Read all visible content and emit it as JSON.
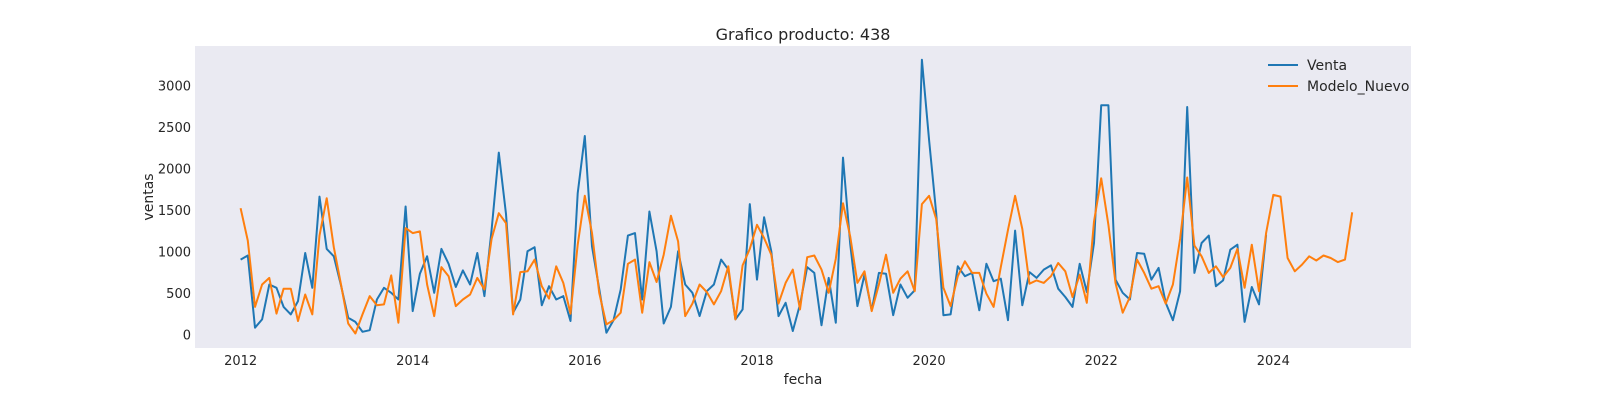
{
  "chart_data": {
    "type": "line",
    "title": "Grafico producto: 438",
    "xlabel": "fecha",
    "ylabel": "ventas",
    "xlim": [
      2011.47,
      2025.6
    ],
    "ylim": [
      -165,
      3475
    ],
    "xticks": [
      2012,
      2014,
      2016,
      2018,
      2020,
      2022,
      2024
    ],
    "yticks": [
      0,
      500,
      1000,
      1500,
      2000,
      2500,
      3000
    ],
    "grid": false,
    "legend_position": "top-right",
    "series": [
      {
        "name": "Venta",
        "color": "#1f77b4",
        "x_start": 2012.0,
        "x_step": 0.0833333,
        "values": [
          900,
          950,
          80,
          180,
          600,
          560,
          330,
          240,
          400,
          980,
          560,
          1660,
          1030,
          940,
          590,
          200,
          150,
          30,
          50,
          420,
          560,
          500,
          420,
          1540,
          280,
          730,
          940,
          500,
          1030,
          850,
          570,
          770,
          600,
          980,
          460,
          1260,
          2190,
          1450,
          260,
          420,
          1000,
          1050,
          350,
          580,
          420,
          460,
          160,
          1700,
          2390,
          1060,
          550,
          20,
          170,
          540,
          1190,
          1220,
          420,
          1480,
          1000,
          130,
          330,
          1000,
          600,
          500,
          220,
          520,
          600,
          900,
          780,
          180,
          300,
          1570,
          660,
          1410,
          1000,
          220,
          380,
          40,
          360,
          810,
          740,
          110,
          680,
          140,
          2130,
          1090,
          340,
          720,
          290,
          740,
          730,
          230,
          600,
          440,
          530,
          3310,
          2340,
          1460,
          230,
          240,
          820,
          700,
          740,
          290,
          850,
          640,
          670,
          170,
          1250,
          350,
          750,
          680,
          780,
          830,
          550,
          450,
          330,
          850,
          510,
          1100,
          2760,
          2760,
          660,
          500,
          420,
          980,
          970,
          660,
          800,
          380,
          170,
          520,
          2740,
          740,
          1100,
          1190,
          580,
          650,
          1020,
          1080,
          150,
          570,
          360,
          1200
        ]
      },
      {
        "name": "Modelo_Nuevo",
        "color": "#ff7f0e",
        "x_start": 2012.0,
        "x_step": 0.0833333,
        "values": [
          1520,
          1130,
          330,
          600,
          680,
          250,
          550,
          550,
          160,
          480,
          240,
          1190,
          1640,
          1050,
          600,
          130,
          10,
          240,
          460,
          350,
          360,
          710,
          140,
          1280,
          1220,
          1240,
          600,
          220,
          810,
          700,
          340,
          420,
          480,
          680,
          540,
          1150,
          1460,
          1340,
          240,
          750,
          760,
          900,
          580,
          430,
          820,
          620,
          250,
          1080,
          1670,
          1220,
          500,
          120,
          170,
          260,
          850,
          900,
          260,
          870,
          630,
          960,
          1430,
          1120,
          220,
          370,
          600,
          510,
          360,
          520,
          820,
          180,
          830,
          1030,
          1320,
          1160,
          960,
          370,
          620,
          780,
          300,
          930,
          950,
          780,
          500,
          910,
          1580,
          1180,
          620,
          760,
          280,
          600,
          960,
          500,
          670,
          760,
          520,
          1570,
          1670,
          1390,
          560,
          340,
          700,
          880,
          740,
          740,
          490,
          330,
          810,
          1260,
          1670,
          1270,
          610,
          650,
          620,
          700,
          860,
          760,
          450,
          720,
          380,
          1360,
          1880,
          1320,
          620,
          260,
          450,
          900,
          740,
          550,
          580,
          370,
          600,
          1150,
          1890,
          1070,
          940,
          740,
          820,
          690,
          800,
          1030,
          560,
          1080,
          520,
          1220,
          1680,
          1660,
          920,
          760,
          840,
          940,
          890,
          950,
          920,
          870,
          900,
          1470
        ]
      }
    ]
  }
}
